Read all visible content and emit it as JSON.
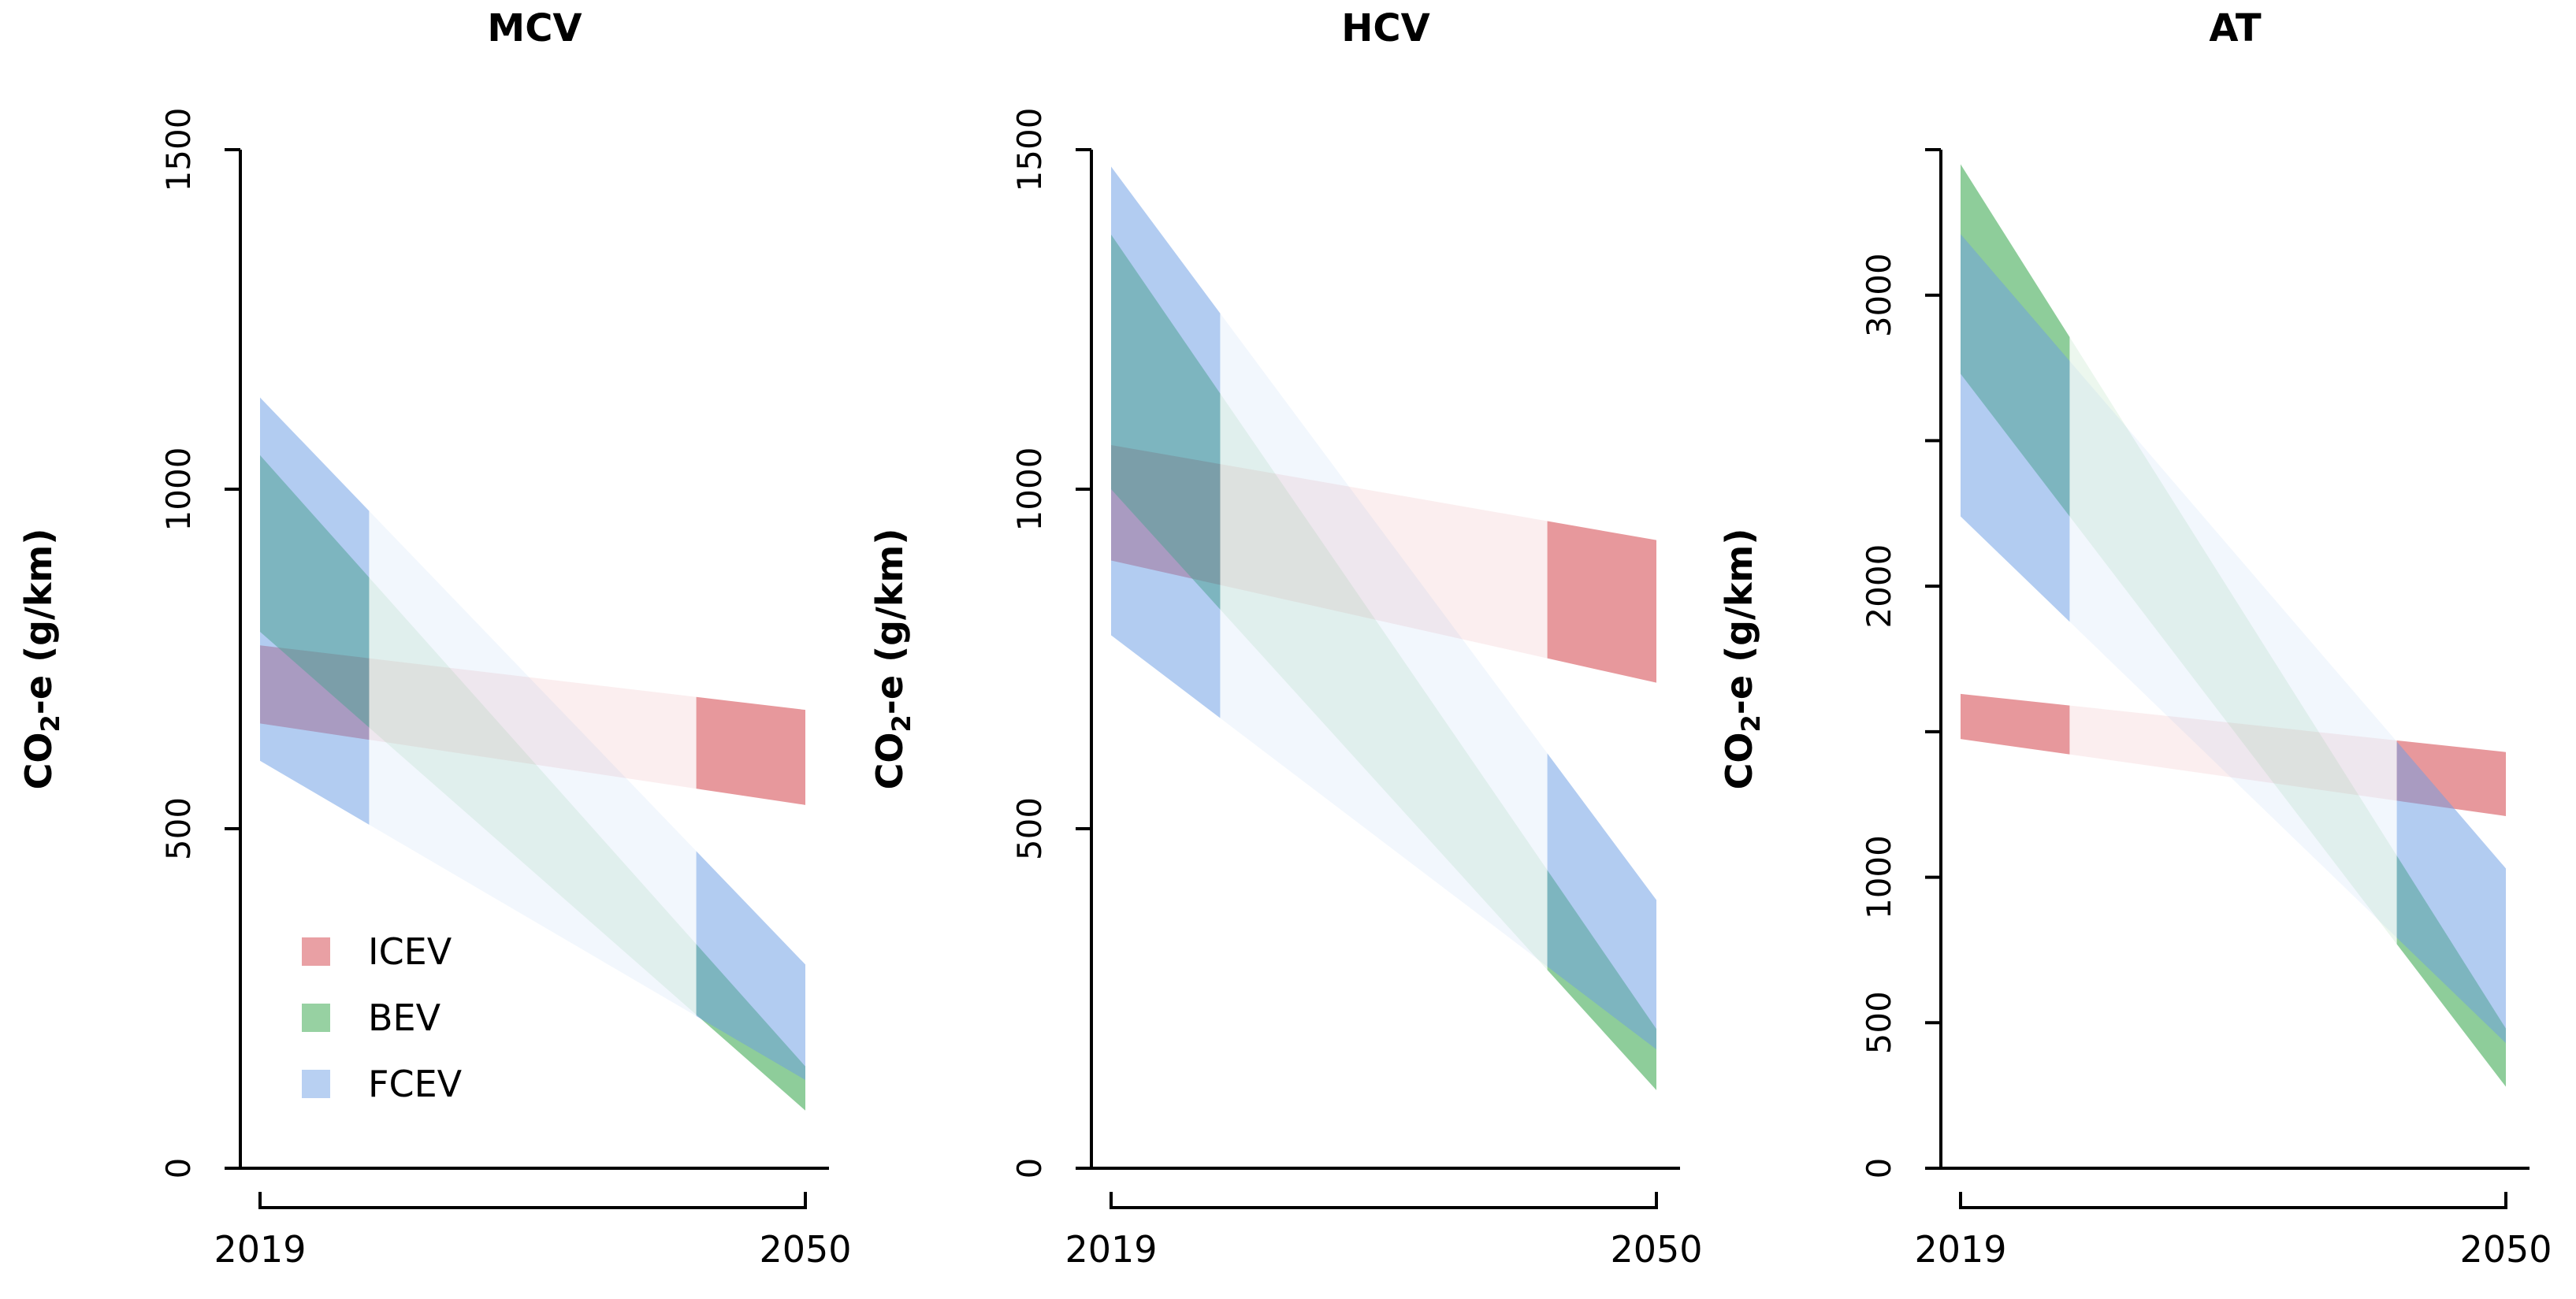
{
  "figure": {
    "background": "#ffffff",
    "y_axis_title": "CO2-e (g/km)",
    "y_axis_title_parts": {
      "pre": "CO",
      "sub": "2",
      "post": "-e (g/km)"
    },
    "x_tick_labels": [
      "2019",
      "2050"
    ]
  },
  "legend": {
    "position": "bottom-left of first panel",
    "items": [
      {
        "label": "ICEV",
        "color": "#E9A0A4"
      },
      {
        "label": "BEV",
        "color": "#97D1A2"
      },
      {
        "label": "FCEV",
        "color": "#B8D0F2"
      }
    ]
  },
  "style": {
    "axis_color": "#000000",
    "solid_opacity": 0.5,
    "faint_opacity": 0.09,
    "series_colors": {
      "ICEV": {
        "base": "#D34149",
        "fill": "#E9A0A4"
      },
      "BEV": {
        "base": "#2FA345",
        "fill": "#97D1A2"
      },
      "FCEV": {
        "base": "#71A1E5",
        "fill": "#B8D0F2"
      }
    }
  },
  "chart_data": [
    {
      "type": "area",
      "title": "MCV",
      "xlabel": "",
      "ylabel": "CO2-e (g/km)",
      "x_categories": [
        2019,
        2050
      ],
      "ylim": [
        0,
        1500
      ],
      "yticks": [
        0,
        500,
        1000,
        1500
      ],
      "ytick_labels": [
        0,
        500,
        1000,
        1500
      ],
      "solid_fraction_ends": [
        0.2,
        0.2
      ],
      "series": [
        {
          "name": "ICEV",
          "range_2019": [
            655,
            770
          ],
          "range_2050": [
            535,
            675
          ]
        },
        {
          "name": "BEV",
          "range_2019": [
            790,
            1050
          ],
          "range_2050": [
            85,
            150
          ]
        },
        {
          "name": "FCEV",
          "range_2019": [
            600,
            1135
          ],
          "range_2050": [
            130,
            300
          ]
        }
      ]
    },
    {
      "type": "area",
      "title": "HCV",
      "xlabel": "",
      "ylabel": "CO2-e (g/km)",
      "x_categories": [
        2019,
        2050
      ],
      "ylim": [
        0,
        1500
      ],
      "yticks": [
        0,
        500,
        1000,
        1500
      ],
      "ytick_labels": [
        0,
        500,
        1000,
        1500
      ],
      "solid_fraction_ends": [
        0.2,
        0.2
      ],
      "series": [
        {
          "name": "ICEV",
          "range_2019": [
            895,
            1065
          ],
          "range_2050": [
            715,
            925
          ]
        },
        {
          "name": "BEV",
          "range_2019": [
            1000,
            1375
          ],
          "range_2050": [
            115,
            205
          ]
        },
        {
          "name": "FCEV",
          "range_2019": [
            785,
            1475
          ],
          "range_2050": [
            175,
            395
          ]
        }
      ]
    },
    {
      "type": "area",
      "title": "AT",
      "xlabel": "",
      "ylabel": "CO2-e (g/km)",
      "x_categories": [
        2019,
        2050
      ],
      "ylim": [
        0,
        3500
      ],
      "yticks": [
        0,
        500,
        1000,
        1500,
        2000,
        2500,
        3000,
        3500
      ],
      "ytick_labels": [
        0,
        500,
        1000,
        2000,
        3000
      ],
      "solid_fraction_ends": [
        0.2,
        0.2
      ],
      "series": [
        {
          "name": "ICEV",
          "range_2019": [
            1475,
            1630
          ],
          "range_2050": [
            1210,
            1430
          ]
        },
        {
          "name": "BEV",
          "range_2019": [
            2730,
            3450
          ],
          "range_2050": [
            280,
            480
          ]
        },
        {
          "name": "FCEV",
          "range_2019": [
            2240,
            3210
          ],
          "range_2050": [
            430,
            1030
          ]
        }
      ]
    }
  ]
}
